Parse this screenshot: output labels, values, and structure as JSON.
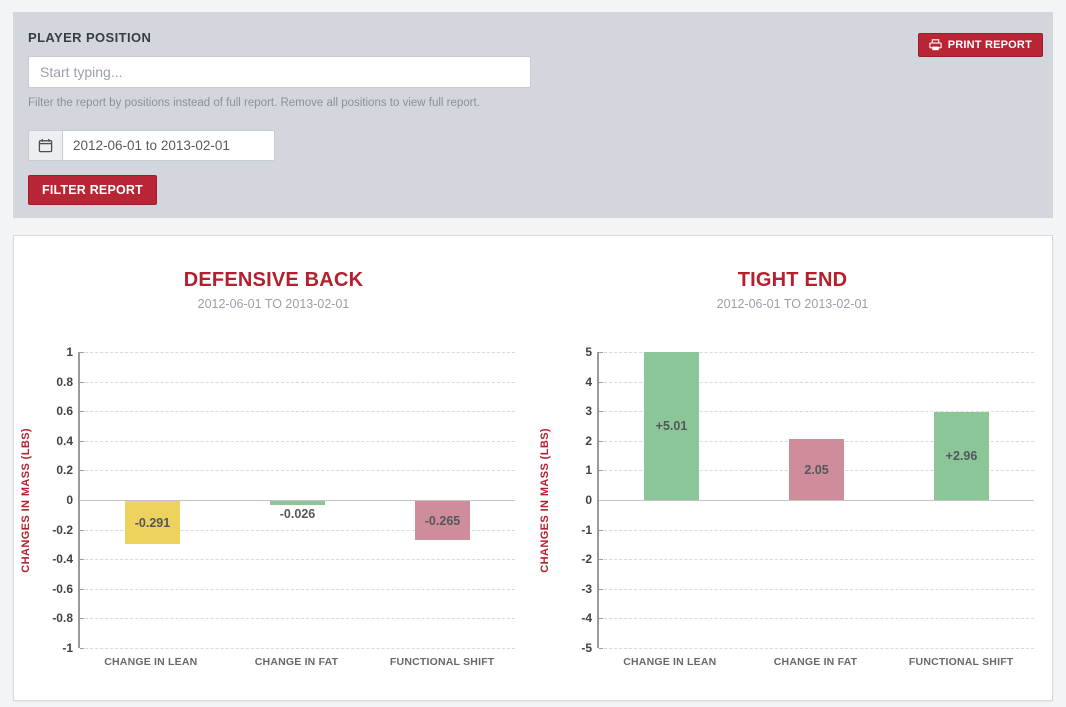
{
  "colors": {
    "accent_red": "#b82534",
    "panel_gray": "#d3d7dd",
    "bar_yellow": "#edd35e",
    "bar_green": "#8bc698",
    "bar_pink": "#cf8c9b"
  },
  "filter_panel": {
    "title": "PLAYER POSITION",
    "search_placeholder": "Start typing...",
    "help_text": "Filter the report by positions instead of full report. Remove all positions to view full report.",
    "date_range": "2012-06-01 to 2013-02-01",
    "filter_button": "FILTER REPORT",
    "print_button": "PRINT REPORT",
    "calendar_icon": "calendar-icon",
    "print_icon": "printer-icon"
  },
  "chart_data": [
    {
      "type": "bar",
      "title": "DEFENSIVE BACK",
      "subtitle": "2012-06-01 TO 2013-02-01",
      "ylabel": "CHANGES IN MASS (LBS)",
      "xlabel": "",
      "ylim": [
        -1,
        1
      ],
      "yticks": [
        "1",
        "0.8",
        "0.6",
        "0.4",
        "0.2",
        "0",
        "-0.2",
        "-0.4",
        "-0.6",
        "-0.8",
        "-1"
      ],
      "grid": true,
      "legend": "none",
      "categories": [
        "CHANGE IN LEAN",
        "CHANGE IN FAT",
        "FUNCTIONAL SHIFT"
      ],
      "values": [
        -0.291,
        -0.026,
        -0.265
      ],
      "value_labels": [
        "-0.291",
        "-0.026",
        "-0.265"
      ],
      "bar_colors": [
        "#edd35e",
        "#8bc698",
        "#cf8c9b"
      ]
    },
    {
      "type": "bar",
      "title": "TIGHT END",
      "subtitle": "2012-06-01 TO 2013-02-01",
      "ylabel": "CHANGES IN MASS (LBS)",
      "xlabel": "",
      "ylim": [
        -5,
        5
      ],
      "yticks": [
        "5",
        "4",
        "3",
        "2",
        "1",
        "0",
        "-1",
        "-2",
        "-3",
        "-4",
        "-5"
      ],
      "grid": true,
      "legend": "none",
      "categories": [
        "CHANGE IN LEAN",
        "CHANGE IN FAT",
        "FUNCTIONAL SHIFT"
      ],
      "values": [
        5.01,
        2.05,
        2.96
      ],
      "value_labels": [
        "+5.01",
        "2.05",
        "+2.96"
      ],
      "bar_colors": [
        "#8bc698",
        "#cf8c9b",
        "#8bc698"
      ]
    }
  ]
}
